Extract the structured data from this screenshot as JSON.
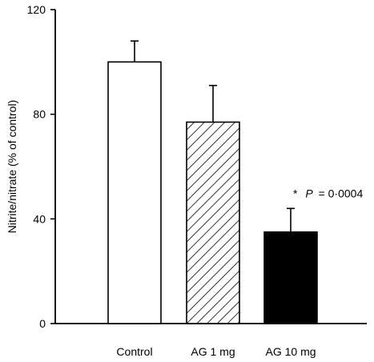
{
  "chart_data": {
    "type": "bar",
    "title": "",
    "xlabel": "",
    "ylabel": "Nitrite/nitrate (% of control)",
    "categories": [
      "Control",
      "AG 1 mg",
      "AG 10 mg"
    ],
    "values": [
      100,
      77,
      35
    ],
    "errors": [
      8,
      14,
      9
    ],
    "fills": [
      "white",
      "hatched",
      "black"
    ],
    "yticks": [
      "0",
      "40",
      "80",
      "120"
    ],
    "ytick_values": [
      0,
      40,
      80,
      120
    ],
    "ylim": [
      0,
      120
    ],
    "grid": false,
    "legend": "none",
    "annotation": {
      "category_index": 2,
      "star": "*",
      "label": "P",
      "value": "= 0·0004"
    }
  }
}
